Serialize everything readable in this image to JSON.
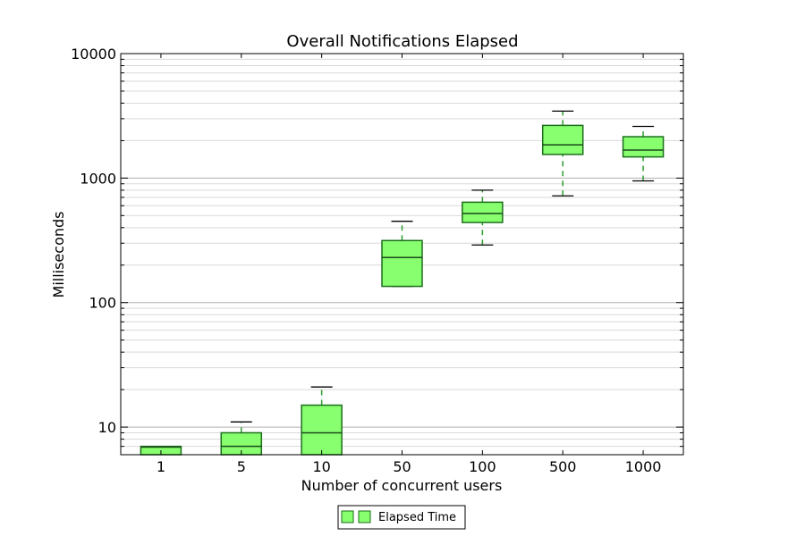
{
  "chart_data": {
    "type": "box",
    "title": "Overall Notifications Elapsed",
    "xlabel": "Number of concurrent users",
    "ylabel": "Milliseconds",
    "yscale": "log",
    "ylim": [
      6,
      10000
    ],
    "y_tick_labels": [
      "10",
      "100",
      "1000",
      "10000"
    ],
    "y_tick_values": [
      10,
      100,
      1000,
      10000
    ],
    "categories": [
      "1",
      "5",
      "10",
      "50",
      "100",
      "500",
      "1000"
    ],
    "series": [
      {
        "name": "Elapsed Time",
        "boxes": [
          {
            "whisker_low": 6,
            "q1": 6,
            "median": 6.9,
            "q3": 7,
            "whisker_high": 7
          },
          {
            "whisker_low": 6,
            "q1": 6,
            "median": 7,
            "q3": 9,
            "whisker_high": 11
          },
          {
            "whisker_low": 6,
            "q1": 6,
            "median": 9,
            "q3": 15,
            "whisker_high": 21
          },
          {
            "whisker_low": 135,
            "q1": 135,
            "median": 230,
            "q3": 315,
            "whisker_high": 450
          },
          {
            "whisker_low": 290,
            "q1": 440,
            "median": 520,
            "q3": 640,
            "whisker_high": 800
          },
          {
            "whisker_low": 720,
            "q1": 1550,
            "median": 1850,
            "q3": 2650,
            "whisker_high": 3450
          },
          {
            "whisker_low": 950,
            "q1": 1480,
            "median": 1680,
            "q3": 2150,
            "whisker_high": 2600
          }
        ]
      }
    ],
    "grid": true,
    "legend_position": "bottom-center",
    "colors": {
      "box_fill": "#88ff6e",
      "box_edge": "#1a6e1a",
      "whisker": "#2e9c2e",
      "cap": "#000000",
      "median": "#1a4a1a",
      "grid": "#d9d9d9"
    }
  }
}
